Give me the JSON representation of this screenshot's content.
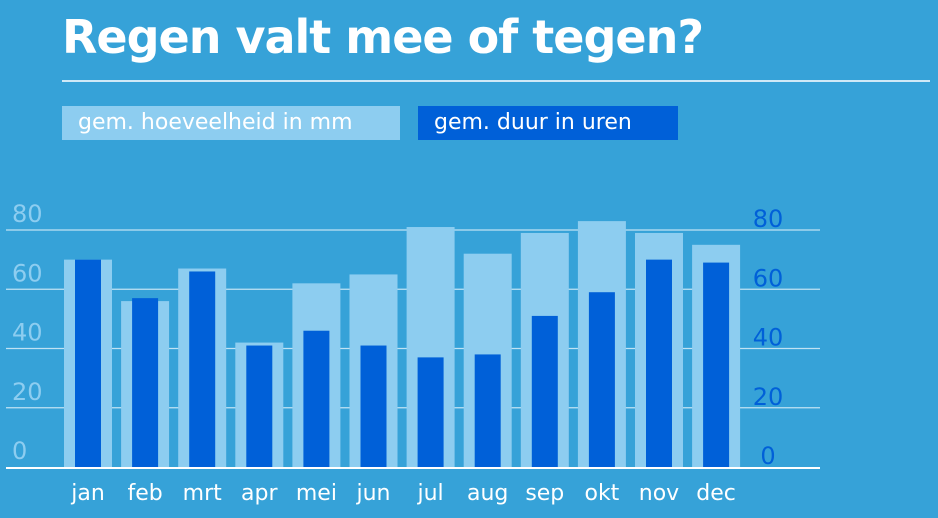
{
  "title": "Regen valt mee of tegen?",
  "legend": {
    "amount": "gem. hoeveelheid in mm",
    "duration": "gem. duur in uren"
  },
  "colors": {
    "background": "#36a2d8",
    "amount": "#8dcdf0",
    "duration": "#0060d8",
    "left_axis_text": "#8dcdf0",
    "right_axis_text": "#0060d8",
    "grid": "#cfe9f7"
  },
  "chart_data": {
    "type": "bar",
    "categories": [
      "jan",
      "feb",
      "mrt",
      "apr",
      "mei",
      "jun",
      "jul",
      "aug",
      "sep",
      "okt",
      "nov",
      "dec"
    ],
    "series": [
      {
        "name": "gem. hoeveelheid in mm",
        "axis": "left",
        "values": [
          70,
          56,
          67,
          42,
          62,
          65,
          81,
          72,
          79,
          83,
          79,
          75
        ]
      },
      {
        "name": "gem. duur in uren",
        "axis": "right",
        "values": [
          70,
          57,
          66,
          41,
          46,
          41,
          37,
          38,
          51,
          59,
          70,
          69
        ]
      }
    ],
    "left_ticks": [
      "0",
      "20",
      "40",
      "60",
      "80"
    ],
    "right_ticks": [
      "0",
      "20",
      "40",
      "60",
      "80"
    ],
    "ylim": [
      0,
      80
    ],
    "grid": true,
    "legend_position": "top-left"
  }
}
